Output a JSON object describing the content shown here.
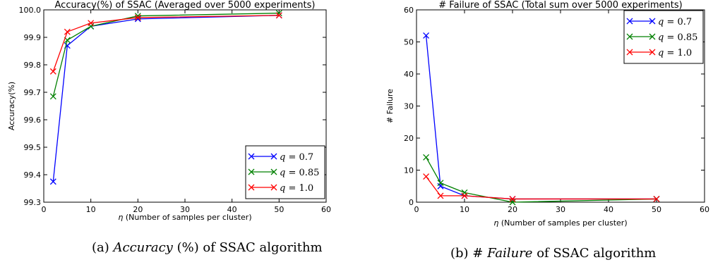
{
  "chart_data": [
    {
      "type": "line",
      "title": "Accuracy(%) of SSAC (Averaged over 5000 experiments)",
      "xlabel_prefix": "η",
      "xlabel": " (Number of samples per cluster)",
      "ylabel": "Accuracy(%)",
      "xlim": [
        0,
        60
      ],
      "ylim": [
        99.3,
        100.0
      ],
      "xticks": [
        "0",
        "10",
        "20",
        "30",
        "40",
        "50",
        "60"
      ],
      "yticks": [
        "99.3",
        "99.4",
        "99.5",
        "99.6",
        "99.7",
        "99.8",
        "99.9",
        "100.0"
      ],
      "legend_position": "lower-right",
      "grid": false,
      "x": [
        2,
        5,
        10,
        20,
        50
      ],
      "series": [
        {
          "name": "q = 0.7",
          "color": "#0000ff",
          "values": [
            99.375,
            99.87,
            99.94,
            99.967,
            99.98
          ]
        },
        {
          "name": "q = 0.85",
          "color": "#008000",
          "values": [
            99.685,
            99.89,
            99.94,
            99.978,
            99.988
          ]
        },
        {
          "name": "q = 1.0",
          "color": "#ff0000",
          "values": [
            99.776,
            99.92,
            99.952,
            99.972,
            99.98
          ]
        }
      ],
      "caption_prefix": "(a) ",
      "caption_italic": "Accuracy",
      "caption_suffix": " (%) of SSAC algorithm"
    },
    {
      "type": "line",
      "title": "# Failure of SSAC (Total sum over 5000 experiments)",
      "xlabel_prefix": "η",
      "xlabel": " (Number of samples per cluster)",
      "ylabel": "# Failure",
      "xlim": [
        0,
        60
      ],
      "ylim": [
        0,
        60
      ],
      "xticks": [
        "0",
        "10",
        "20",
        "30",
        "40",
        "50",
        "60"
      ],
      "yticks": [
        "0",
        "10",
        "20",
        "30",
        "40",
        "50",
        "60"
      ],
      "legend_position": "upper-right",
      "grid": false,
      "x": [
        2,
        5,
        10,
        20,
        50
      ],
      "series": [
        {
          "name": "q = 0.7",
          "color": "#0000ff",
          "values": [
            52,
            5,
            2,
            1,
            1
          ]
        },
        {
          "name": "q = 0.85",
          "color": "#008000",
          "values": [
            14,
            6,
            3,
            0,
            1
          ]
        },
        {
          "name": "q = 1.0",
          "color": "#ff0000",
          "values": [
            8,
            2,
            2,
            1,
            1
          ]
        }
      ],
      "caption_prefix": "(b) # ",
      "caption_italic": "Failure",
      "caption_suffix": " of SSAC algorithm"
    }
  ]
}
